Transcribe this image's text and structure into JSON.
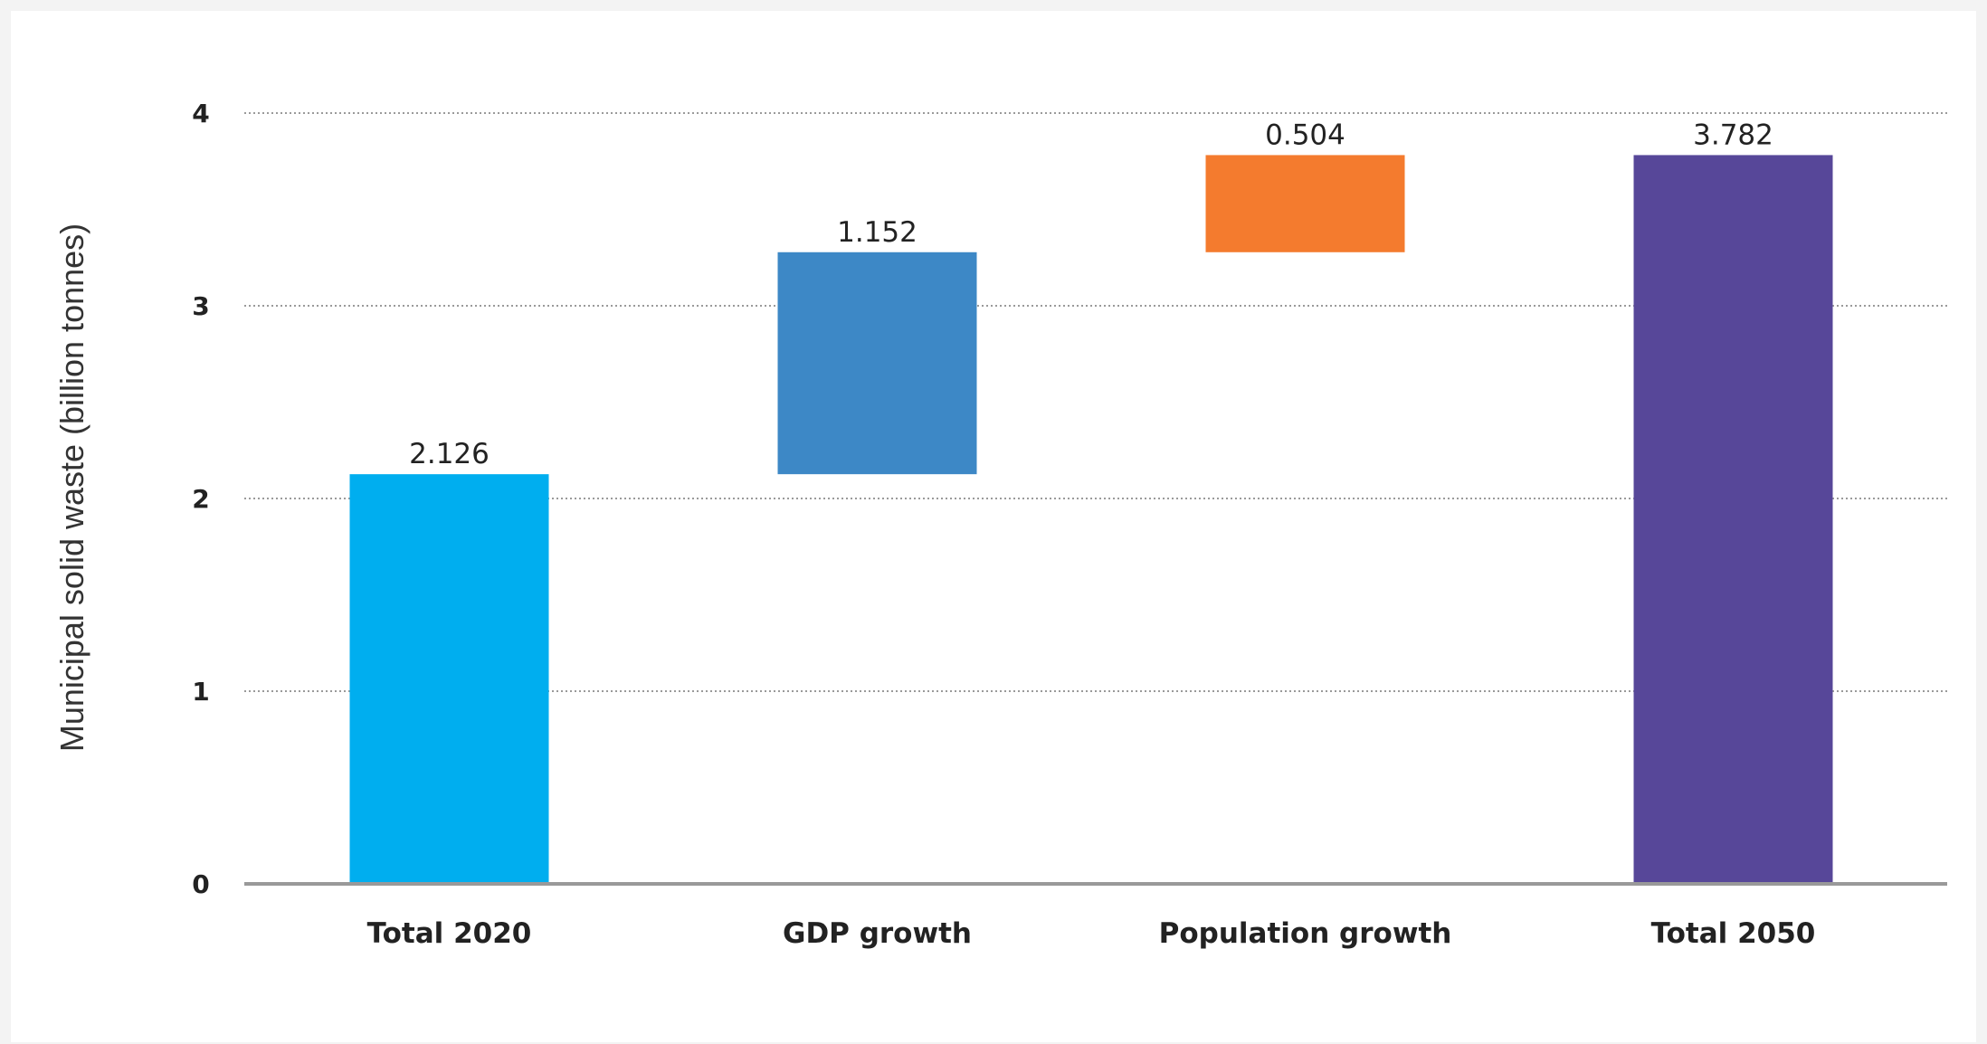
{
  "chart_data": {
    "type": "bar",
    "subtype": "waterfall",
    "categories": [
      "Total 2020",
      "GDP growth",
      "Population growth",
      "Total 2050"
    ],
    "values": [
      2.126,
      1.152,
      0.504,
      3.782
    ],
    "bar_roles": [
      "total",
      "increment",
      "increment",
      "total"
    ],
    "data_labels": [
      "2.126",
      "1.152",
      "0.504",
      "3.782"
    ],
    "colors": [
      "#00aeef",
      "#3d88c6",
      "#f47b2e",
      "#574799"
    ],
    "title": "",
    "xlabel": "",
    "ylabel": "Municipal solid waste (billion tonnes)",
    "ylim": [
      0,
      4
    ],
    "yticks": [
      0,
      1,
      2,
      3,
      4
    ],
    "ytick_labels": [
      "0",
      "1",
      "2",
      "3",
      "4"
    ],
    "grid": true,
    "legend": "none"
  }
}
